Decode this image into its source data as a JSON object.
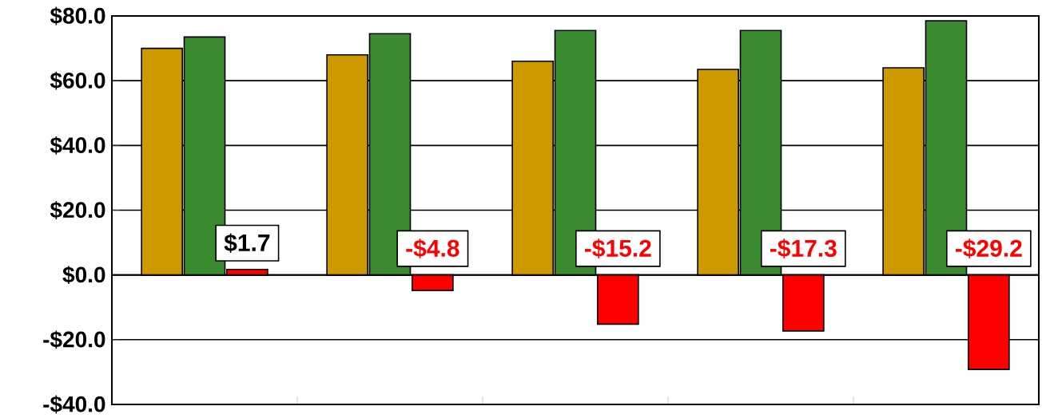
{
  "chart_data": {
    "type": "bar",
    "categories": [
      null,
      null,
      null,
      null,
      null
    ],
    "series": [
      {
        "color": "#cc9900",
        "values": [
          70,
          68,
          66,
          63.5,
          64
        ]
      },
      {
        "color": "#3a8a30",
        "values": [
          73.5,
          74.5,
          75.5,
          75.5,
          78.5
        ]
      },
      {
        "color": "#ff0000",
        "values": [
          1.7,
          -4.8,
          -15.2,
          -17.3,
          -29.2
        ],
        "value_labels": [
          "$1.7",
          "-$4.8",
          "-$15.2",
          "-$17.3",
          "-$29.2"
        ]
      }
    ],
    "ylim": [
      -40,
      80
    ],
    "yticks": [
      {
        "value": -40,
        "label": "-$40.0"
      },
      {
        "value": -20,
        "label": "-$20.0"
      },
      {
        "value": 0,
        "label": "$0.0"
      },
      {
        "value": 20,
        "label": "$20.0"
      },
      {
        "value": 40,
        "label": "$40.0"
      },
      {
        "value": 60,
        "label": "$60.0"
      },
      {
        "value": 80,
        "label": "$80.0"
      }
    ],
    "grid": "y",
    "tick_labels": "y"
  }
}
